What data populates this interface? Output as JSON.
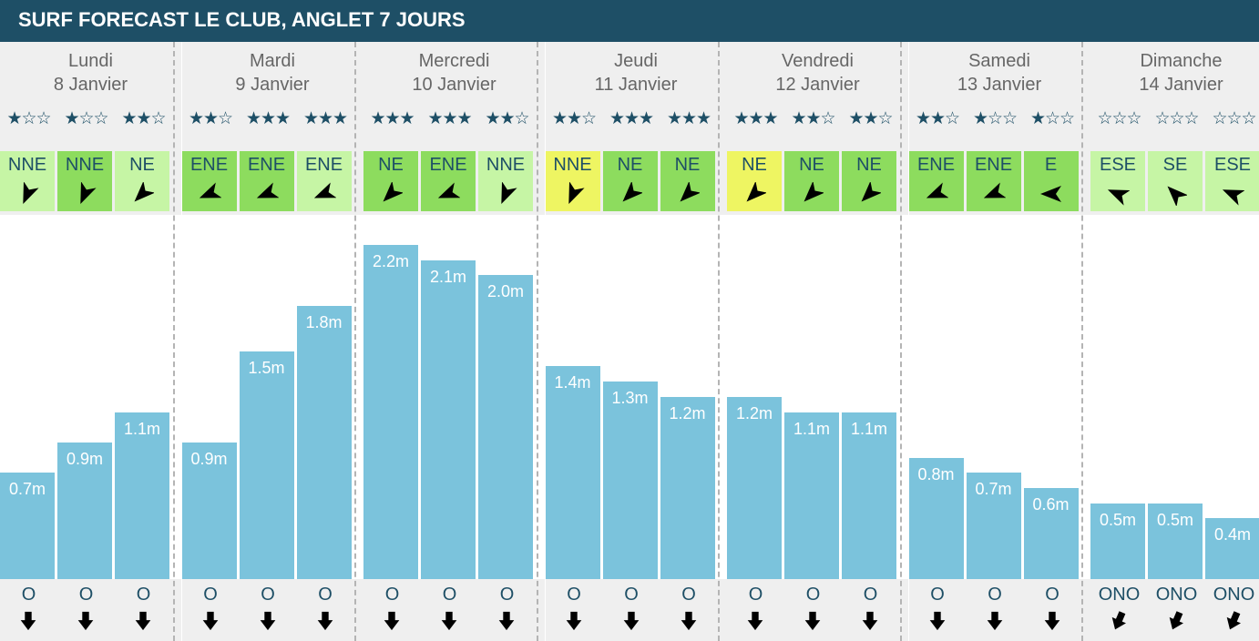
{
  "title": "SURF FORECAST LE CLUB, ANGLET 7 JOURS",
  "colors": {
    "header": "#1e4f66",
    "bar": "#7bc3dc",
    "wind_light": "#c6f5a5",
    "wind_medium": "#8ddc5e",
    "wind_yellow": "#eef562",
    "star": "#1e4f66"
  },
  "chart_data": {
    "type": "bar",
    "unit": "m",
    "ylim": [
      0,
      2.2
    ],
    "days": [
      {
        "name": "Lundi",
        "date": "8 Janvier",
        "slots": [
          {
            "rating": 1,
            "wind": "NNE",
            "wind_level": "light",
            "wind_deg": 23,
            "height": 0.7,
            "label": "0.7m",
            "swell": "O",
            "swell_deg": 270
          },
          {
            "rating": 1,
            "wind": "NNE",
            "wind_level": "medium",
            "wind_deg": 23,
            "height": 0.9,
            "label": "0.9m",
            "swell": "O",
            "swell_deg": 270
          },
          {
            "rating": 2,
            "wind": "NE",
            "wind_level": "light",
            "wind_deg": 45,
            "height": 1.1,
            "label": "1.1m",
            "swell": "O",
            "swell_deg": 270
          }
        ]
      },
      {
        "name": "Mardi",
        "date": "9 Janvier",
        "slots": [
          {
            "rating": 2,
            "wind": "ENE",
            "wind_level": "medium",
            "wind_deg": 68,
            "height": 0.9,
            "label": "0.9m",
            "swell": "O",
            "swell_deg": 270
          },
          {
            "rating": 3,
            "wind": "ENE",
            "wind_level": "medium",
            "wind_deg": 68,
            "height": 1.5,
            "label": "1.5m",
            "swell": "O",
            "swell_deg": 270
          },
          {
            "rating": 3,
            "wind": "ENE",
            "wind_level": "light",
            "wind_deg": 68,
            "height": 1.8,
            "label": "1.8m",
            "swell": "O",
            "swell_deg": 270
          }
        ]
      },
      {
        "name": "Mercredi",
        "date": "10 Janvier",
        "slots": [
          {
            "rating": 3,
            "wind": "NE",
            "wind_level": "medium",
            "wind_deg": 45,
            "height": 2.2,
            "label": "2.2m",
            "swell": "O",
            "swell_deg": 270
          },
          {
            "rating": 3,
            "wind": "ENE",
            "wind_level": "medium",
            "wind_deg": 68,
            "height": 2.1,
            "label": "2.1m",
            "swell": "O",
            "swell_deg": 270
          },
          {
            "rating": 2,
            "wind": "NNE",
            "wind_level": "light",
            "wind_deg": 23,
            "height": 2.0,
            "label": "2.0m",
            "swell": "O",
            "swell_deg": 270
          }
        ]
      },
      {
        "name": "Jeudi",
        "date": "11 Janvier",
        "slots": [
          {
            "rating": 2,
            "wind": "NNE",
            "wind_level": "yellow",
            "wind_deg": 23,
            "height": 1.4,
            "label": "1.4m",
            "swell": "O",
            "swell_deg": 270
          },
          {
            "rating": 3,
            "wind": "NE",
            "wind_level": "medium",
            "wind_deg": 45,
            "height": 1.3,
            "label": "1.3m",
            "swell": "O",
            "swell_deg": 270
          },
          {
            "rating": 3,
            "wind": "NE",
            "wind_level": "medium",
            "wind_deg": 45,
            "height": 1.2,
            "label": "1.2m",
            "swell": "O",
            "swell_deg": 270
          }
        ]
      },
      {
        "name": "Vendredi",
        "date": "12 Janvier",
        "slots": [
          {
            "rating": 3,
            "wind": "NE",
            "wind_level": "yellow",
            "wind_deg": 45,
            "height": 1.2,
            "label": "1.2m",
            "swell": "O",
            "swell_deg": 270
          },
          {
            "rating": 2,
            "wind": "NE",
            "wind_level": "medium",
            "wind_deg": 45,
            "height": 1.1,
            "label": "1.1m",
            "swell": "O",
            "swell_deg": 270
          },
          {
            "rating": 2,
            "wind": "NE",
            "wind_level": "medium",
            "wind_deg": 45,
            "height": 1.1,
            "label": "1.1m",
            "swell": "O",
            "swell_deg": 270
          }
        ]
      },
      {
        "name": "Samedi",
        "date": "13 Janvier",
        "slots": [
          {
            "rating": 2,
            "wind": "ENE",
            "wind_level": "medium",
            "wind_deg": 68,
            "height": 0.8,
            "label": "0.8m",
            "swell": "O",
            "swell_deg": 270
          },
          {
            "rating": 1,
            "wind": "ENE",
            "wind_level": "medium",
            "wind_deg": 68,
            "height": 0.7,
            "label": "0.7m",
            "swell": "O",
            "swell_deg": 270
          },
          {
            "rating": 1,
            "wind": "E",
            "wind_level": "medium",
            "wind_deg": 90,
            "height": 0.6,
            "label": "0.6m",
            "swell": "O",
            "swell_deg": 270
          }
        ]
      },
      {
        "name": "Dimanche",
        "date": "14 Janvier",
        "slots": [
          {
            "rating": 0,
            "wind": "ESE",
            "wind_level": "light",
            "wind_deg": 113,
            "height": 0.5,
            "label": "0.5m",
            "swell": "ONO",
            "swell_deg": 293
          },
          {
            "rating": 0,
            "wind": "SE",
            "wind_level": "light",
            "wind_deg": 135,
            "height": 0.5,
            "label": "0.5m",
            "swell": "ONO",
            "swell_deg": 293
          },
          {
            "rating": 0,
            "wind": "ESE",
            "wind_level": "light",
            "wind_deg": 113,
            "height": 0.4,
            "label": "0.4m",
            "swell": "ONO",
            "swell_deg": 293
          }
        ]
      }
    ]
  }
}
